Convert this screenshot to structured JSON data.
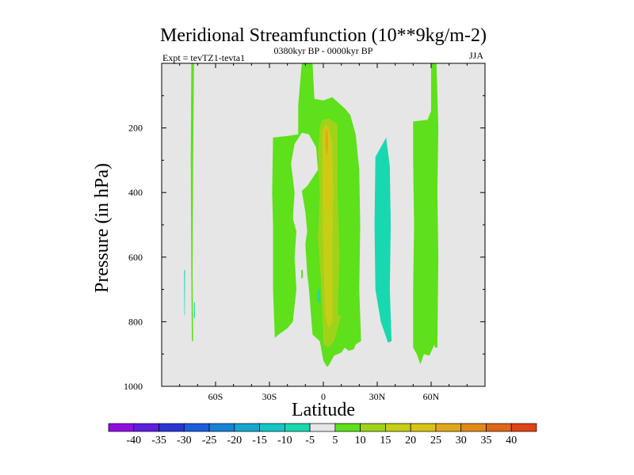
{
  "chart_data": {
    "type": "contour",
    "title": "Meridional Streamfunction (10**9kg/m-2)",
    "left_string": "Expt = tevTZ1-tevta1",
    "center_string": "0380kyr BP - 0000kyr BP",
    "right_string": "JJA",
    "xlabel": "Latitude",
    "ylabel": "Pressure (in hPa)",
    "xlim": [
      -90,
      90
    ],
    "ylim": [
      1000,
      0
    ],
    "x_ticks": [
      {
        "value": -60,
        "label": "60S"
      },
      {
        "value": -30,
        "label": "30S"
      },
      {
        "value": 0,
        "label": "0"
      },
      {
        "value": 30,
        "label": "30N"
      },
      {
        "value": 60,
        "label": "60N"
      }
    ],
    "y_ticks": [
      {
        "value": 200,
        "label": "200"
      },
      {
        "value": 400,
        "label": "400"
      },
      {
        "value": 600,
        "label": "600"
      },
      {
        "value": 800,
        "label": "800"
      },
      {
        "value": 1000,
        "label": "1000"
      }
    ],
    "background_color": "#e6e6e6",
    "colorbar": {
      "levels": [
        -40,
        -35,
        -30,
        -25,
        -20,
        -15,
        -10,
        -5,
        5,
        10,
        15,
        20,
        25,
        30,
        35,
        40
      ],
      "labels": [
        "-40",
        "-35",
        "-30",
        "-25",
        "-20",
        "-15",
        "-10",
        "-5",
        "5",
        "10",
        "15",
        "20",
        "25",
        "30",
        "35",
        "40"
      ],
      "colors": [
        "#8f0fe0",
        "#5f1ee0",
        "#2a33d6",
        "#1a5ee0",
        "#1384d6",
        "#14a6d0",
        "#12c6c6",
        "#18d8b0",
        "#e6e6e6",
        "#5ee01a",
        "#9fd31a",
        "#c4cf16",
        "#d9c414",
        "#e0a818",
        "#e08a18",
        "#e06616",
        "#e04414"
      ]
    },
    "regions": [
      {
        "name": "green-band-70S",
        "value": 7,
        "outline": [
          [
            -73.5,
            0
          ],
          [
            -72,
            0
          ],
          [
            -72.5,
            300
          ],
          [
            -72.8,
            650
          ],
          [
            -72.5,
            860
          ],
          [
            -73.2,
            860
          ],
          [
            -73.5,
            650
          ],
          [
            -73.8,
            300
          ]
        ]
      },
      {
        "name": "cyan-blob-77S",
        "value": -7,
        "outline": [
          [
            -77.5,
            640
          ],
          [
            -77,
            640
          ],
          [
            -77.1,
            780
          ],
          [
            -77.4,
            780
          ]
        ]
      },
      {
        "name": "cyan-blob-71S",
        "value": -7,
        "outline": [
          [
            -72,
            740
          ],
          [
            -71.5,
            740
          ],
          [
            -71.5,
            790
          ],
          [
            -72,
            790
          ]
        ]
      },
      {
        "name": "green-mid-band",
        "value": 7,
        "outline": [
          [
            -28,
            230
          ],
          [
            -20,
            225
          ],
          [
            -14,
            220
          ],
          [
            -14,
            130
          ],
          [
            -12,
            0
          ],
          [
            -6,
            0
          ],
          [
            -5,
            110
          ],
          [
            0,
            115
          ],
          [
            5,
            105
          ],
          [
            8,
            120
          ],
          [
            12,
            140
          ],
          [
            15,
            160
          ],
          [
            18,
            220
          ],
          [
            20,
            330
          ],
          [
            20.5,
            500
          ],
          [
            20,
            700
          ],
          [
            21,
            860
          ],
          [
            18,
            870
          ],
          [
            17,
            885
          ],
          [
            14,
            890
          ],
          [
            12,
            880
          ],
          [
            10,
            895
          ],
          [
            6,
            905
          ],
          [
            3,
            935
          ],
          [
            2,
            940
          ],
          [
            0,
            920
          ],
          [
            -2,
            860
          ],
          [
            -6,
            840
          ],
          [
            -8,
            700
          ],
          [
            -9,
            650
          ],
          [
            -10,
            560
          ],
          [
            -9,
            520
          ],
          [
            -10,
            460
          ],
          [
            -12,
            395
          ],
          [
            -9,
            380
          ],
          [
            -3,
            330
          ],
          [
            -4,
            260
          ],
          [
            -8,
            220
          ],
          [
            -12,
            215
          ],
          [
            -16,
            250
          ],
          [
            -18,
            310
          ],
          [
            -16,
            400
          ],
          [
            -17,
            480
          ],
          [
            -15,
            520
          ],
          [
            -16,
            600
          ],
          [
            -15,
            700
          ],
          [
            -17,
            800
          ],
          [
            -20,
            820
          ],
          [
            -25,
            840
          ],
          [
            -27,
            850
          ],
          [
            -28,
            700
          ],
          [
            -28,
            500
          ],
          [
            -28.5,
            400
          ]
        ]
      },
      {
        "name": "green-speck",
        "value": 7,
        "outline": [
          [
            -12.3,
            640
          ],
          [
            -11.4,
            640
          ],
          [
            -11.4,
            665
          ],
          [
            -12.3,
            665
          ]
        ]
      },
      {
        "name": "yellowgreen-core",
        "value": 12,
        "outline": [
          [
            -1,
            180
          ],
          [
            0,
            175
          ],
          [
            3,
            170
          ],
          [
            8,
            190
          ],
          [
            8,
            400
          ],
          [
            9,
            600
          ],
          [
            8,
            780
          ],
          [
            10,
            780
          ],
          [
            6,
            860
          ],
          [
            3,
            880
          ],
          [
            0,
            870
          ],
          [
            -1,
            700
          ],
          [
            -3,
            540
          ],
          [
            -2,
            400
          ],
          [
            -3,
            300
          ],
          [
            -2,
            200
          ]
        ]
      },
      {
        "name": "yellow-core",
        "value": 17,
        "outline": [
          [
            -0.5,
            210
          ],
          [
            1,
            190
          ],
          [
            3,
            195
          ],
          [
            5,
            250
          ],
          [
            5.5,
            400
          ],
          [
            5,
            600
          ],
          [
            5.2,
            800
          ],
          [
            3,
            820
          ],
          [
            1,
            780
          ],
          [
            0,
            600
          ],
          [
            -0.5,
            400
          ]
        ]
      },
      {
        "name": "orange-core",
        "value": 22,
        "outline": [
          [
            0.5,
            200
          ],
          [
            2,
            190
          ],
          [
            3,
            200
          ],
          [
            3.5,
            300
          ],
          [
            3.5,
            420
          ],
          [
            2.5,
            480
          ],
          [
            1.5,
            420
          ],
          [
            1.8,
            300
          ]
        ]
      },
      {
        "name": "red-core",
        "value": 27,
        "outline": [
          [
            1.2,
            210
          ],
          [
            2,
            205
          ],
          [
            2.6,
            230
          ],
          [
            2.5,
            270
          ],
          [
            1.8,
            285
          ],
          [
            1.2,
            260
          ]
        ]
      },
      {
        "name": "green-speck-2",
        "value": 7,
        "outline": [
          [
            -3.2,
            290
          ],
          [
            -2.6,
            290
          ],
          [
            -2.6,
            310
          ],
          [
            -3.2,
            310
          ]
        ]
      },
      {
        "name": "green-speck-3",
        "value": 7,
        "outline": [
          [
            -3.2,
            370
          ],
          [
            -2.6,
            370
          ],
          [
            -2.6,
            390
          ],
          [
            -3.2,
            390
          ]
        ]
      },
      {
        "name": "cyan-band-35N",
        "value": -7,
        "outline": [
          [
            29,
            290
          ],
          [
            35,
            230
          ],
          [
            37,
            320
          ],
          [
            37.5,
            500
          ],
          [
            37,
            700
          ],
          [
            38,
            860
          ],
          [
            36,
            865
          ],
          [
            32,
            800
          ],
          [
            29,
            700
          ],
          [
            28.5,
            500
          ]
        ]
      },
      {
        "name": "green-band-55N",
        "value": 7,
        "outline": [
          [
            50,
            180
          ],
          [
            58,
            175
          ],
          [
            62,
            120
          ],
          [
            62.5,
            200
          ],
          [
            62.2,
            400
          ],
          [
            62.5,
            600
          ],
          [
            62.8,
            860
          ],
          [
            59,
            905
          ],
          [
            56,
            900
          ],
          [
            54,
            932
          ],
          [
            52,
            900
          ],
          [
            50,
            880
          ],
          [
            50,
            700
          ],
          [
            50.5,
            500
          ],
          [
            50,
            300
          ]
        ]
      },
      {
        "name": "green-band-60N-right",
        "value": 7,
        "outline": [
          [
            60,
            0
          ],
          [
            63,
            0
          ],
          [
            64,
            200
          ],
          [
            63.5,
            400
          ],
          [
            64,
            600
          ],
          [
            63.5,
            880
          ],
          [
            62,
            880
          ],
          [
            61,
            700
          ],
          [
            60.5,
            400
          ],
          [
            60,
            200
          ]
        ]
      },
      {
        "name": "cyan-blob-30S",
        "value": -7,
        "outline": [
          [
            -3,
            700
          ],
          [
            -2,
            700
          ],
          [
            -2,
            740
          ],
          [
            -3,
            740
          ]
        ]
      }
    ]
  }
}
